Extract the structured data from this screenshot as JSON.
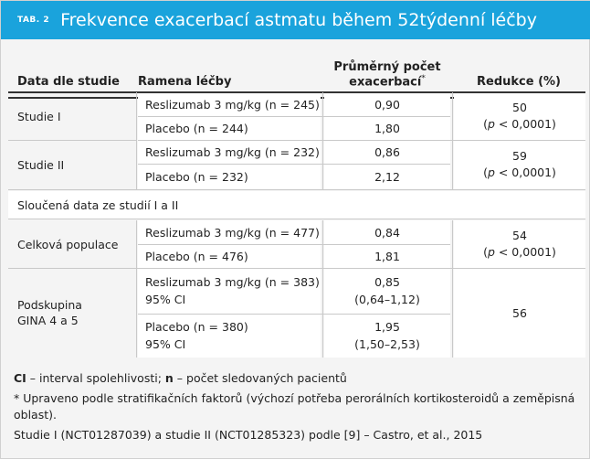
{
  "header": {
    "tab_label": "TAB. 2",
    "title": "Frekvence exacerbací astmatu během 52týdenní léčby"
  },
  "columns": {
    "study": "Data dle studie",
    "arm": "Ramena léčby",
    "rate_line1": "Průměrný počet",
    "rate_line2": "exacerbací",
    "rate_mark": "*",
    "reduction": "Redukce (%)"
  },
  "rows": {
    "s1": {
      "study": "Studie I",
      "arm_a": "Reslizumab 3 mg/kg (n = 245)",
      "rate_a": "0,90",
      "arm_b": "Placebo (n = 244)",
      "rate_b": "1,80",
      "reduction": "50",
      "p_letter": "p",
      "p_value": " < 0,0001)"
    },
    "s2": {
      "study": "Studie II",
      "arm_a": "Reslizumab 3 mg/kg (n = 232)",
      "rate_a": "0,86",
      "arm_b": "Placebo (n = 232)",
      "rate_b": "2,12",
      "reduction": "59",
      "p_letter": "p",
      "p_value": " < 0,0001)"
    },
    "pooled_label": "Sloučená data ze studií I a II",
    "total": {
      "study": "Celková populace",
      "arm_a": "Reslizumab 3 mg/kg (n = 477)",
      "rate_a": "0,84",
      "arm_b": "Placebo (n = 476)",
      "rate_b": "1,81",
      "reduction": "54",
      "p_letter": "p",
      "p_value": " < 0,0001)"
    },
    "gina": {
      "study_line1": "Podskupina",
      "study_line2": "GINA 4 a 5",
      "arm_a": "Reslizumab 3 mg/kg (n = 383)",
      "arm_a_ci": "95% CI",
      "rate_a": "0,85",
      "rate_a_ci": "(0,64–1,12)",
      "arm_b": "Placebo (n = 380)",
      "arm_b_ci": "95% CI",
      "rate_b": "1,95",
      "rate_b_ci": "(1,50–2,53)",
      "reduction": "56"
    }
  },
  "footnotes": {
    "ci_abbr": "CI",
    "ci_text": " – interval spolehlivosti; ",
    "n_abbr": "n",
    "n_text": " – počet sledovaných pacientů",
    "note_star": "* Upraveno podle stratifikačních faktorů (výchozí potřeba perorálních kortikosteroidů a zeměpisná oblast).",
    "source": "Studie I (NCT01287039) a studie II (NCT01285323) podle [9] – Castro, et al., 2015"
  }
}
